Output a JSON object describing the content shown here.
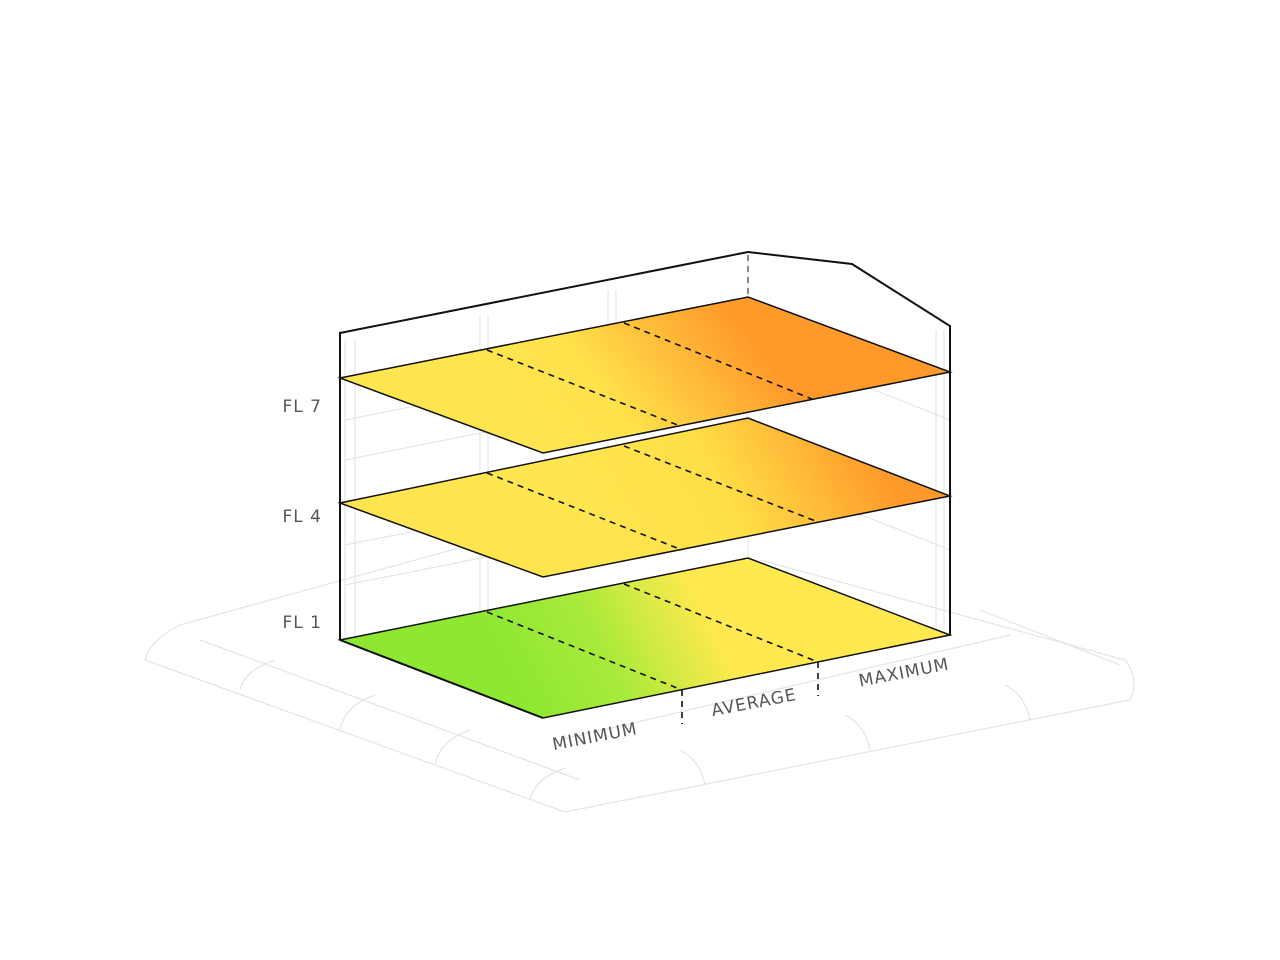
{
  "floors": [
    {
      "label": "FL 7"
    },
    {
      "label": "FL 4"
    },
    {
      "label": "FL 1"
    }
  ],
  "zones": [
    {
      "label": "MINIMUM"
    },
    {
      "label": "AVERAGE"
    },
    {
      "label": "MAXIMUM"
    }
  ]
}
